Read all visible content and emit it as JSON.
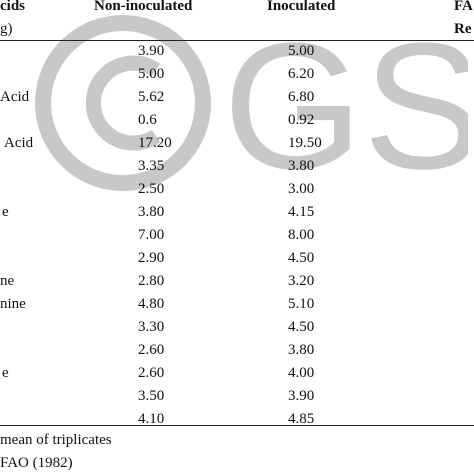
{
  "header": {
    "col1_line1": "cids",
    "col1_line2": "g)",
    "col2": "Non-inoculated",
    "col3": "Inoculated",
    "col4_line1": "FA",
    "col4_line2": "Re"
  },
  "rows": [
    {
      "label": "",
      "non_inoculated": "3.90",
      "inoculated": "5.00"
    },
    {
      "label": "",
      "non_inoculated": "5.00",
      "inoculated": "6.20"
    },
    {
      "label": "Acid",
      "non_inoculated": "5.62",
      "inoculated": "6.80"
    },
    {
      "label": "",
      "non_inoculated": "0.6",
      "inoculated": "0.92"
    },
    {
      "label": "Acid",
      "non_inoculated": "17.20",
      "inoculated": "19.50"
    },
    {
      "label": "",
      "non_inoculated": "3.35",
      "inoculated": "3.80"
    },
    {
      "label": "",
      "non_inoculated": "2.50",
      "inoculated": "3.00"
    },
    {
      "label": "e",
      "non_inoculated": "3.80",
      "inoculated": "4.15"
    },
    {
      "label": "",
      "non_inoculated": "7.00",
      "inoculated": "8.00"
    },
    {
      "label": "",
      "non_inoculated": "2.90",
      "inoculated": "4.50"
    },
    {
      "label": "ne",
      "non_inoculated": "2.80",
      "inoculated": "3.20"
    },
    {
      "label": "nine",
      "non_inoculated": "4.80",
      "inoculated": "5.10"
    },
    {
      "label": "",
      "non_inoculated": "3.30",
      "inoculated": "4.50"
    },
    {
      "label": "",
      "non_inoculated": "2.60",
      "inoculated": "3.80"
    },
    {
      "label": "e",
      "non_inoculated": "2.60",
      "inoculated": "4.00"
    },
    {
      "label": "",
      "non_inoculated": "3.50",
      "inoculated": "3.90"
    },
    {
      "label": "",
      "non_inoculated": "4.10",
      "inoculated": "4.85"
    }
  ],
  "footnotes": {
    "line1": "mean of triplicates",
    "line2": "FAO (1982)"
  },
  "watermark": {
    "text": "© GSJ",
    "color": "#c8c8c8"
  }
}
